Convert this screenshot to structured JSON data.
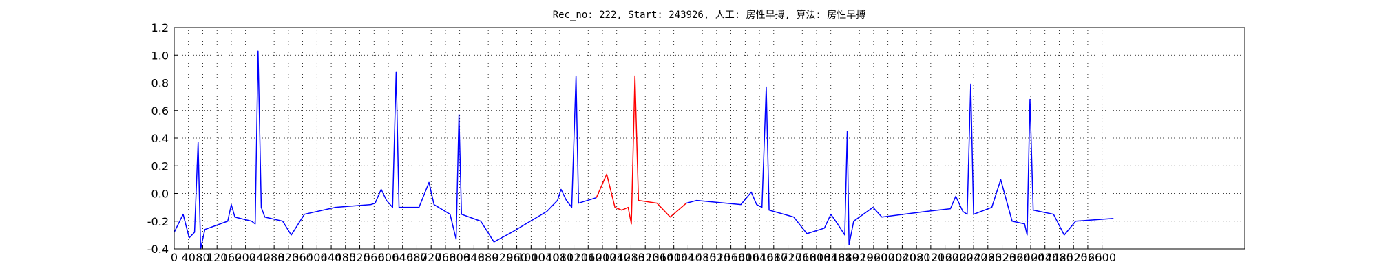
{
  "chart_data": {
    "type": "line",
    "title": "Rec_no: 222, Start: 243926, 人工: 房性早搏, 算法: 房性早搏",
    "xlim": [
      0,
      3000
    ],
    "ylim": [
      -0.4,
      1.2
    ],
    "xticks": [
      0,
      40,
      80,
      120,
      160,
      200,
      240,
      280,
      320,
      360,
      400,
      440,
      480,
      520,
      560,
      600,
      640,
      680,
      720,
      760,
      800,
      840,
      880,
      920,
      960,
      1000,
      1040,
      1080,
      1120,
      1160,
      1200,
      1240,
      1280,
      1320,
      1360,
      1400,
      1440,
      1480,
      1520,
      1560,
      1600,
      1640,
      1680,
      1720,
      1760,
      1800,
      1840,
      1880,
      1920,
      1960,
      2000,
      2040,
      2080,
      2120,
      2160,
      2200,
      2240,
      2280,
      2320,
      2360,
      2400,
      2440,
      2480,
      2520,
      2560,
      2600
    ],
    "yticks": [
      -0.4,
      -0.2,
      {
        "value": 0,
        "label": "0.0"
      },
      0.2,
      0.4,
      0.6,
      0.8,
      {
        "value": 1,
        "label": "1.0"
      },
      1.2
    ],
    "grid": true,
    "series": [
      {
        "color": "#0000ff",
        "x": [
          0,
          25,
          42,
          57,
          67,
          74,
          86,
          150,
          160,
          170,
          217,
          227,
          235,
          244,
          254,
          304,
          328,
          365,
          452,
          551,
          563,
          580,
          595,
          612,
          622,
          630,
          686,
          714,
          728,
          773,
          790,
          798,
          805,
          859,
          896,
          946,
          1044,
          1074,
          1084,
          1099,
          1114,
          1126,
          1133,
          1183,
          1300,
          1435,
          1464,
          1588,
          1617,
          1632,
          1647,
          1659,
          1667,
          1736,
          1773,
          1822,
          1840,
          1859,
          1879,
          1886,
          1891,
          1904,
          1958,
          1983,
          2106,
          2175,
          2190,
          2210,
          2222,
          2232,
          2240,
          2291,
          2316,
          2348,
          2383,
          2390,
          2398,
          2407,
          2464,
          2494,
          2526,
          2632
        ],
        "values": [
          -0.28,
          -0.15,
          -0.32,
          -0.28,
          0.37,
          -0.4,
          -0.26,
          -0.2,
          -0.08,
          -0.17,
          -0.2,
          -0.22,
          1.03,
          -0.1,
          -0.17,
          -0.2,
          -0.3,
          -0.15,
          -0.1,
          -0.08,
          -0.07,
          0.03,
          -0.05,
          -0.1,
          0.88,
          -0.1,
          -0.1,
          0.08,
          -0.08,
          -0.15,
          -0.33,
          0.57,
          -0.15,
          -0.2,
          -0.35,
          -0.28,
          -0.13,
          -0.05,
          0.03,
          -0.05,
          -0.1,
          0.85,
          -0.07,
          -0.03,
          null,
          -0.07,
          -0.05,
          -0.08,
          0.01,
          -0.08,
          -0.1,
          0.77,
          -0.12,
          -0.17,
          -0.29,
          -0.25,
          -0.15,
          -0.22,
          -0.3,
          0.45,
          -0.37,
          -0.2,
          -0.1,
          -0.17,
          -0.13,
          -0.11,
          -0.02,
          -0.13,
          -0.15,
          0.79,
          -0.15,
          -0.1,
          0.1,
          -0.2,
          -0.22,
          -0.3,
          0.68,
          -0.12,
          -0.15,
          -0.3,
          -0.2,
          -0.18
        ]
      },
      {
        "color": "#ff0000",
        "x": [
          1183,
          1212,
          1235,
          1254,
          1272,
          1281,
          1291,
          1301,
          1353,
          1390,
          1435
        ],
        "values": [
          -0.03,
          0.14,
          -0.1,
          -0.12,
          -0.1,
          -0.22,
          0.85,
          -0.05,
          -0.07,
          -0.17,
          -0.07
        ]
      }
    ]
  }
}
